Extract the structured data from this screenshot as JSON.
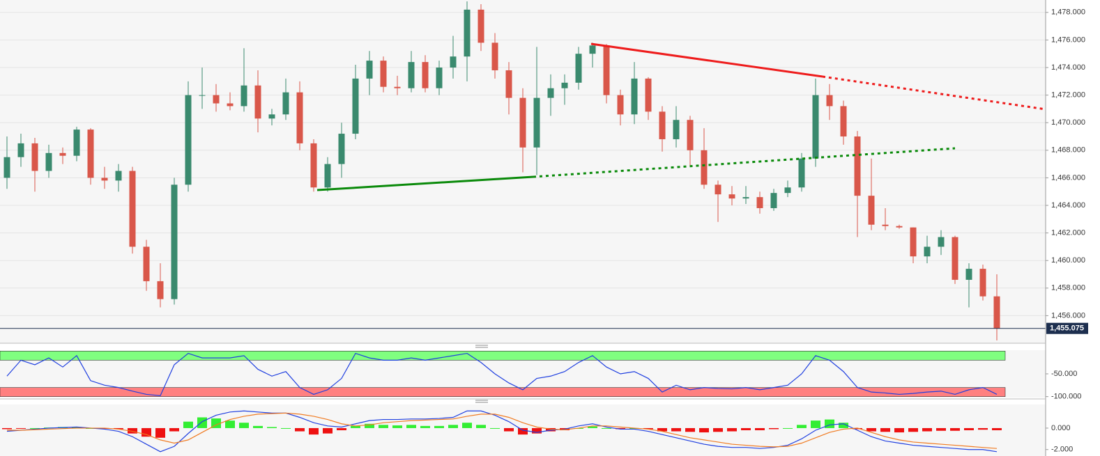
{
  "chart_data": [
    {
      "type": "candlestick",
      "up_color": "#3a8a6e",
      "down_color": "#d9574a",
      "ylim": [
        1454,
        1478.9
      ],
      "yticks": [
        {
          "value": 1478,
          "label": "1,478.000"
        },
        {
          "value": 1476,
          "label": "1,476.000"
        },
        {
          "value": 1474,
          "label": "1,474.000"
        },
        {
          "value": 1472,
          "label": "1,472.000"
        },
        {
          "value": 1470,
          "label": "1,470.000"
        },
        {
          "value": 1468,
          "label": "1,468.000"
        },
        {
          "value": 1466,
          "label": "1,466.000"
        },
        {
          "value": 1464,
          "label": "1,464.000"
        },
        {
          "value": 1462,
          "label": "1,462.000"
        },
        {
          "value": 1460,
          "label": "1,460.000"
        },
        {
          "value": 1458,
          "label": "1,458.000"
        },
        {
          "value": 1456,
          "label": "1,456.000"
        }
      ],
      "grid": true,
      "last_price": {
        "value": 1455.075,
        "label": "1,455.075"
      },
      "ohlc": [
        [
          1466.0,
          1469.0,
          1465.2,
          1467.5
        ],
        [
          1467.5,
          1469.2,
          1466.8,
          1468.5
        ],
        [
          1468.5,
          1468.9,
          1465.0,
          1466.5
        ],
        [
          1466.5,
          1468.4,
          1466.0,
          1467.8
        ],
        [
          1467.8,
          1468.2,
          1467.0,
          1467.6
        ],
        [
          1467.6,
          1469.7,
          1467.2,
          1469.5
        ],
        [
          1469.5,
          1469.6,
          1465.5,
          1466.0
        ],
        [
          1466.0,
          1466.8,
          1465.2,
          1465.8
        ],
        [
          1465.8,
          1467.0,
          1465.0,
          1466.5
        ],
        [
          1466.5,
          1466.8,
          1460.5,
          1461.0
        ],
        [
          1461.0,
          1461.5,
          1457.8,
          1458.5
        ],
        [
          1458.5,
          1459.8,
          1456.6,
          1457.2
        ],
        [
          1457.2,
          1466.0,
          1456.8,
          1465.5
        ],
        [
          1465.5,
          1473.0,
          1465.0,
          1472.0
        ],
        [
          1472.0,
          1474.0,
          1471.0,
          1472.0
        ],
        [
          1472.0,
          1472.8,
          1470.8,
          1471.4
        ],
        [
          1471.4,
          1472.2,
          1470.9,
          1471.2
        ],
        [
          1471.2,
          1475.4,
          1470.8,
          1472.7
        ],
        [
          1472.7,
          1473.8,
          1469.3,
          1470.3
        ],
        [
          1470.3,
          1471.0,
          1469.8,
          1470.6
        ],
        [
          1470.6,
          1473.2,
          1470.2,
          1472.2
        ],
        [
          1472.2,
          1473.0,
          1468.0,
          1468.5
        ],
        [
          1468.5,
          1468.8,
          1465.0,
          1465.3
        ],
        [
          1465.3,
          1467.5,
          1465.0,
          1467.0
        ],
        [
          1467.0,
          1470.0,
          1466.0,
          1469.2
        ],
        [
          1469.2,
          1474.2,
          1468.8,
          1473.2
        ],
        [
          1473.2,
          1475.2,
          1472.0,
          1474.5
        ],
        [
          1474.5,
          1474.8,
          1472.2,
          1472.6
        ],
        [
          1472.6,
          1473.4,
          1472.0,
          1472.5
        ],
        [
          1472.5,
          1475.2,
          1472.2,
          1474.4
        ],
        [
          1474.4,
          1474.9,
          1472.2,
          1472.5
        ],
        [
          1472.5,
          1474.5,
          1472.0,
          1474.0
        ],
        [
          1474.0,
          1476.3,
          1473.2,
          1474.8
        ],
        [
          1474.8,
          1478.8,
          1473.0,
          1478.2
        ],
        [
          1478.2,
          1478.6,
          1475.2,
          1475.8
        ],
        [
          1475.8,
          1476.5,
          1473.2,
          1473.8
        ],
        [
          1473.8,
          1474.4,
          1470.6,
          1471.8
        ],
        [
          1471.8,
          1472.5,
          1466.4,
          1468.2
        ],
        [
          1468.2,
          1475.5,
          1466.2,
          1471.8
        ],
        [
          1471.8,
          1473.5,
          1470.5,
          1472.5
        ],
        [
          1472.5,
          1473.5,
          1471.3,
          1472.9
        ],
        [
          1472.9,
          1475.5,
          1472.4,
          1475.0
        ],
        [
          1475.0,
          1475.8,
          1474.0,
          1475.6
        ],
        [
          1475.6,
          1475.7,
          1471.4,
          1472.0
        ],
        [
          1472.0,
          1472.4,
          1469.8,
          1470.6
        ],
        [
          1470.6,
          1474.4,
          1469.9,
          1473.2
        ],
        [
          1473.2,
          1473.3,
          1470.2,
          1470.8
        ],
        [
          1470.8,
          1471.2,
          1467.9,
          1468.8
        ],
        [
          1468.8,
          1471.2,
          1468.2,
          1470.2
        ],
        [
          1470.2,
          1470.5,
          1466.8,
          1468.0
        ],
        [
          1468.0,
          1469.6,
          1465.2,
          1465.5
        ],
        [
          1465.5,
          1465.8,
          1462.8,
          1464.8
        ],
        [
          1464.8,
          1465.4,
          1464.0,
          1464.5
        ],
        [
          1464.5,
          1465.4,
          1464.1,
          1464.6
        ],
        [
          1464.6,
          1465.0,
          1463.4,
          1463.8
        ],
        [
          1463.8,
          1465.2,
          1463.6,
          1464.9
        ],
        [
          1464.9,
          1465.8,
          1464.6,
          1465.3
        ],
        [
          1465.3,
          1467.8,
          1465.0,
          1467.4
        ],
        [
          1467.4,
          1473.2,
          1466.8,
          1472.0
        ],
        [
          1472.0,
          1472.8,
          1470.2,
          1471.2
        ],
        [
          1471.2,
          1471.6,
          1468.4,
          1469.0
        ],
        [
          1469.0,
          1469.4,
          1461.7,
          1464.7
        ],
        [
          1464.7,
          1467.4,
          1462.2,
          1462.6
        ],
        [
          1462.6,
          1463.8,
          1462.2,
          1462.5
        ],
        [
          1462.5,
          1462.6,
          1462.3,
          1462.4
        ],
        [
          1462.4,
          1462.4,
          1459.8,
          1460.3
        ],
        [
          1460.3,
          1461.8,
          1459.8,
          1461.0
        ],
        [
          1461.0,
          1462.2,
          1460.4,
          1461.7
        ],
        [
          1461.7,
          1461.8,
          1458.3,
          1458.6
        ],
        [
          1458.6,
          1459.8,
          1456.6,
          1459.4
        ],
        [
          1459.4,
          1459.7,
          1457.1,
          1457.4
        ],
        [
          1457.4,
          1459.0,
          1454.2,
          1455.075
        ]
      ]
    },
    {
      "type": "line",
      "color": "#1f3fe0",
      "ylim": [
        -102,
        2
      ],
      "yticks": [
        {
          "value": -50,
          "label": "-50.000"
        },
        {
          "value": -100,
          "label": "-100.000"
        }
      ],
      "bands": [
        {
          "from": 0,
          "to": -20,
          "color": "#80ff80"
        },
        {
          "from": -80,
          "to": -100,
          "color": "#ff8080"
        }
      ],
      "values": [
        -55,
        -20,
        -30,
        -15,
        -35,
        -10,
        -65,
        -75,
        -80,
        -88,
        -95,
        -98,
        -30,
        -5,
        -15,
        -15,
        -15,
        -10,
        -40,
        -55,
        -45,
        -80,
        -95,
        -85,
        -60,
        -5,
        -15,
        -20,
        -20,
        -15,
        -20,
        -15,
        -10,
        -5,
        -25,
        -50,
        -70,
        -85,
        -60,
        -55,
        -45,
        -25,
        -10,
        -35,
        -50,
        -45,
        -60,
        -90,
        -75,
        -85,
        -80,
        -82,
        -83,
        -80,
        -85,
        -80,
        -75,
        -50,
        -10,
        -20,
        -45,
        -80,
        -90,
        -92,
        -95,
        -93,
        -90,
        -88,
        -95,
        -85,
        -80,
        -95
      ]
    },
    {
      "type": "macd",
      "ylim": [
        -2.6,
        2.2
      ],
      "yticks": [
        {
          "value": 0,
          "label": "0.000"
        },
        {
          "value": -2,
          "label": "-2.000"
        }
      ],
      "positive_color": "#33ee33",
      "negative_color": "#ee1111",
      "values": [
        -0.1,
        -0.05,
        0,
        0.05,
        0.1,
        0.1,
        0,
        -0.05,
        -0.1,
        -0.5,
        -0.8,
        -0.9,
        -0.3,
        0.6,
        1.0,
        0.9,
        0.7,
        0.5,
        0.2,
        0.1,
        0,
        -0.3,
        -0.6,
        -0.5,
        -0.2,
        0.2,
        0.4,
        0.3,
        0.25,
        0.3,
        0.2,
        0.2,
        0.3,
        0.5,
        0.3,
        0,
        -0.3,
        -0.6,
        -0.5,
        -0.3,
        -0.2,
        0,
        0.15,
        0,
        -0.1,
        0,
        -0.1,
        -0.3,
        -0.3,
        -0.35,
        -0.4,
        -0.35,
        -0.3,
        -0.2,
        -0.2,
        -0.1,
        0,
        0.3,
        0.7,
        0.8,
        0.5,
        -0.1,
        -0.3,
        -0.35,
        -0.4,
        -0.35,
        -0.3,
        -0.25,
        -0.25,
        -0.2,
        -0.15,
        -0.2
      ],
      "lines": [
        {
          "color": "#2040e0",
          "values": [
            -0.3,
            -0.2,
            -0.1,
            0,
            0.05,
            0.1,
            0,
            -0.1,
            -0.3,
            -0.8,
            -1.5,
            -2.2,
            -1.7,
            -0.5,
            0.6,
            1.2,
            1.5,
            1.6,
            1.5,
            1.4,
            1.4,
            1.0,
            0.5,
            0.2,
            0.1,
            0.4,
            0.7,
            0.8,
            0.8,
            0.85,
            0.85,
            0.9,
            1.0,
            1.6,
            1.6,
            1.2,
            0.6,
            -0.2,
            -0.4,
            -0.2,
            -0.1,
            0.2,
            0.4,
            0.1,
            -0.1,
            -0.1,
            -0.3,
            -0.6,
            -0.9,
            -1.2,
            -1.5,
            -1.7,
            -1.8,
            -1.8,
            -1.9,
            -1.8,
            -1.6,
            -1.0,
            -0.2,
            0.3,
            0.4,
            -0.2,
            -0.8,
            -1.2,
            -1.4,
            -1.6,
            -1.7,
            -1.8,
            -1.9,
            -2.0,
            -2.0,
            -2.2
          ]
        },
        {
          "color": "#f07a20",
          "values": [
            -0.2,
            -0.2,
            -0.15,
            -0.1,
            -0.05,
            0,
            0,
            0,
            -0.1,
            -0.3,
            -0.6,
            -1.1,
            -1.4,
            -1.1,
            -0.4,
            0.3,
            0.8,
            1.1,
            1.3,
            1.35,
            1.4,
            1.3,
            1.1,
            0.8,
            0.4,
            0.2,
            0.3,
            0.5,
            0.6,
            0.7,
            0.75,
            0.8,
            0.85,
            1.1,
            1.3,
            1.3,
            1.0,
            0.5,
            0.1,
            -0.1,
            -0.15,
            0,
            0.2,
            0.2,
            0.1,
            0,
            -0.1,
            -0.3,
            -0.6,
            -0.9,
            -1.1,
            -1.3,
            -1.5,
            -1.6,
            -1.7,
            -1.75,
            -1.7,
            -1.4,
            -0.9,
            -0.4,
            -0.1,
            0,
            -0.4,
            -0.8,
            -1.1,
            -1.3,
            -1.4,
            -1.5,
            -1.6,
            -1.7,
            -1.8,
            -1.9
          ]
        }
      ]
    }
  ]
}
